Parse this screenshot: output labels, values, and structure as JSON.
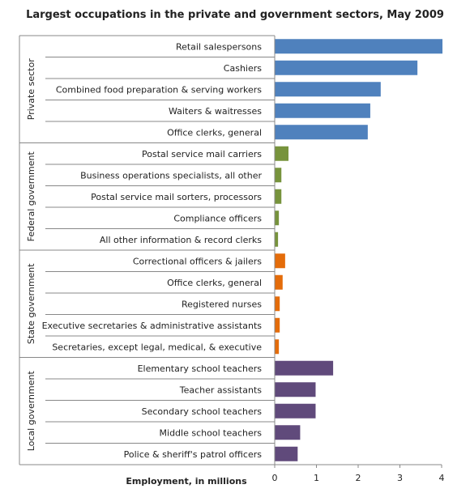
{
  "chart_data": {
    "type": "bar",
    "orientation": "horizontal",
    "title": "Largest occupations in the private and government sectors, May 2009",
    "xlabel": "Employment, in millions",
    "ylabel": "",
    "xlim": [
      0,
      4
    ],
    "x_ticks": [
      0,
      1,
      2,
      3,
      4
    ],
    "grid": false,
    "legend": "none",
    "groups": [
      {
        "name": "Private sector",
        "color": "#4F81BD",
        "categories": [
          "Retail salespersons",
          "Cashiers",
          "Combined food preparation & serving workers",
          "Waiters & waitresses",
          "Office clerks, general"
        ],
        "values": [
          4.02,
          3.42,
          2.54,
          2.29,
          2.23
        ]
      },
      {
        "name": "Federal government",
        "color": "#77933C",
        "categories": [
          "Postal service mail carriers",
          "Business operations specialists, all other",
          "Postal service mail sorters, processors",
          "Compliance officers",
          "All other information & record clerks"
        ],
        "values": [
          0.33,
          0.16,
          0.16,
          0.1,
          0.08
        ]
      },
      {
        "name": "State government",
        "color": "#E46C0A",
        "categories": [
          "Correctional officers & jailers",
          "Office clerks, general",
          "Registered nurses",
          "Executive secretaries & administrative  assistants",
          "Secretaries, except legal, medical, & executive"
        ],
        "values": [
          0.25,
          0.19,
          0.12,
          0.12,
          0.1
        ]
      },
      {
        "name": "Local government",
        "color": "#604A7B",
        "categories": [
          "Elementary school teachers",
          "Teacher assistants",
          "Secondary school teachers",
          "Middle school teachers",
          "Police & sheriff's patrol officers"
        ],
        "values": [
          1.4,
          0.98,
          0.98,
          0.61,
          0.55
        ]
      }
    ]
  }
}
